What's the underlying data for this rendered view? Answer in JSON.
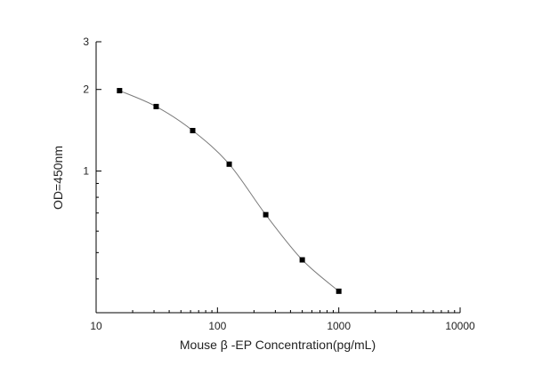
{
  "chart_data": {
    "type": "scatter",
    "title": "",
    "xlabel": "Mouse β -EP Concentration(pg/mL)",
    "ylabel": "OD=450nm",
    "xscale": "log",
    "yscale": "log",
    "xlim": [
      10,
      10000
    ],
    "ylim": [
      0.3,
      3
    ],
    "x_ticks": [
      10,
      100,
      1000,
      10000
    ],
    "x_tick_labels": [
      "10",
      "100",
      "1000",
      "10000"
    ],
    "y_ticks": [
      1,
      2,
      3
    ],
    "y_tick_labels": [
      "1",
      "2",
      "3"
    ],
    "grid": false,
    "legend": "none",
    "marker_color": "#000000",
    "line_color": "#7a7a7a",
    "series": [
      {
        "x": [
          15.6,
          31.25,
          62.5,
          125,
          250,
          500,
          1000
        ],
        "y": [
          1.98,
          1.73,
          1.41,
          1.06,
          0.69,
          0.47,
          0.36
        ]
      }
    ]
  }
}
